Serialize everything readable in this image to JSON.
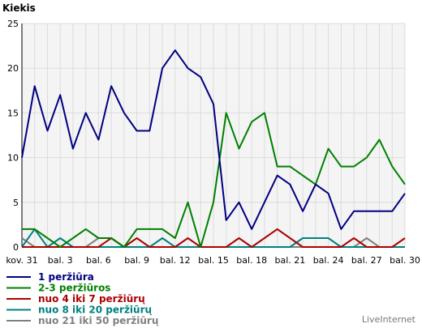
{
  "chart_data": {
    "type": "line",
    "ylabel": "Kiekis",
    "ylim": [
      0,
      25
    ],
    "yticks": [
      "0",
      "5",
      "10",
      "15",
      "20",
      "25"
    ],
    "grid": true,
    "legend_position": "bottom-left",
    "x": [
      "kov. 31",
      "bal. 1",
      "bal. 2",
      "bal. 3",
      "bal. 4",
      "bal. 5",
      "bal. 6",
      "bal. 7",
      "bal. 8",
      "bal. 9",
      "bal. 10",
      "bal. 11",
      "bal. 12",
      "bal. 13",
      "bal. 14",
      "bal. 15",
      "bal. 16",
      "bal. 17",
      "bal. 18",
      "bal. 19",
      "bal. 20",
      "bal. 21",
      "bal. 22",
      "bal. 23",
      "bal. 24",
      "bal. 25",
      "bal. 26",
      "bal. 27",
      "bal. 28",
      "bal. 29",
      "bal. 30"
    ],
    "xtick_labels": [
      "kov. 31",
      "bal. 3",
      "bal. 6",
      "bal. 9",
      "bal. 12",
      "bal. 15",
      "bal. 18",
      "bal. 21",
      "bal. 24",
      "bal. 27",
      "bal. 30"
    ],
    "series": [
      {
        "name": "1 peržiūra",
        "color": "#000080",
        "values": [
          10,
          18,
          13,
          17,
          11,
          15,
          12,
          18,
          15,
          13,
          13,
          20,
          22,
          20,
          19,
          16,
          3,
          5,
          2,
          5,
          8,
          7,
          4,
          7,
          6,
          2,
          4,
          4,
          4,
          4,
          6
        ]
      },
      {
        "name": "2-3 peržiūros",
        "color": "#008000",
        "values": [
          2,
          2,
          1,
          0,
          1,
          2,
          1,
          1,
          0,
          2,
          2,
          2,
          1,
          5,
          0,
          5,
          15,
          11,
          14,
          15,
          9,
          9,
          8,
          7,
          11,
          9,
          9,
          10,
          12,
          9,
          7
        ]
      },
      {
        "name": "nuo 4 iki 7 peržiūrų",
        "color": "#aa0000",
        "values": [
          0,
          0,
          0,
          0,
          0,
          0,
          0,
          1,
          0,
          1,
          0,
          0,
          0,
          1,
          0,
          0,
          0,
          1,
          0,
          1,
          2,
          1,
          0,
          0,
          0,
          0,
          1,
          0,
          0,
          0,
          1
        ]
      },
      {
        "name": "nuo 8 iki 20 peržiūrų",
        "color": "#008080",
        "values": [
          0,
          2,
          0,
          1,
          0,
          0,
          0,
          0,
          0,
          0,
          0,
          1,
          0,
          0,
          0,
          0,
          0,
          0,
          0,
          0,
          0,
          0,
          1,
          1,
          1,
          0,
          0,
          0,
          0,
          0,
          0
        ]
      },
      {
        "name": "nuo 21 iki 50 peržiūrų",
        "color": "#808080",
        "values": [
          1,
          0,
          0,
          0,
          0,
          0,
          1,
          1,
          0,
          0,
          0,
          0,
          0,
          0,
          0,
          0,
          0,
          0,
          0,
          0,
          0,
          0,
          0,
          0,
          0,
          0,
          0,
          1,
          0,
          0,
          0
        ]
      }
    ]
  },
  "footer": {
    "brand": "LiveInternet"
  }
}
